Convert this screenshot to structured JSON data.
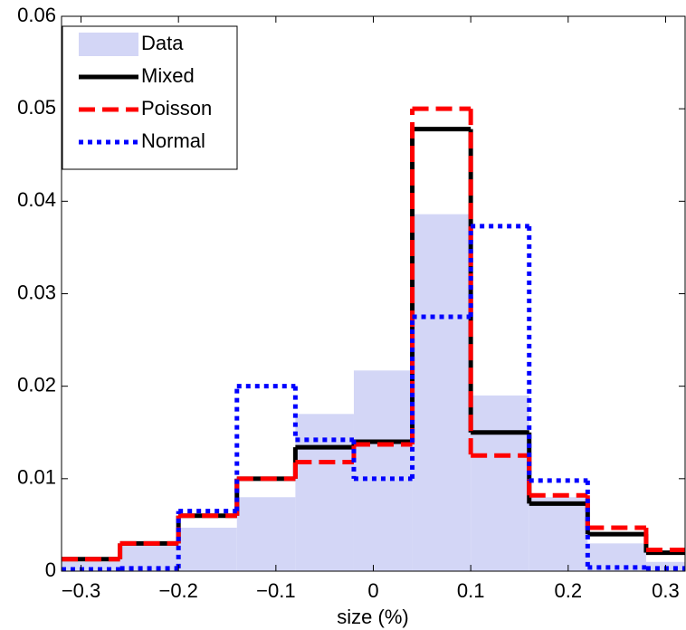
{
  "chart_data": {
    "type": "histogram",
    "x_label": "size (%)",
    "bins": [
      -0.32,
      -0.26,
      -0.2,
      -0.14,
      -0.08,
      -0.02,
      0.04,
      0.1,
      0.16,
      0.22,
      0.28,
      0.34
    ],
    "series": [
      {
        "name": "Data",
        "color": "#d3d6f6",
        "style": "bar",
        "values": [
          0.001,
          0.003,
          0.0047,
          0.008,
          0.017,
          0.0217,
          0.0386,
          0.019,
          0.008,
          0.003,
          0.001
        ]
      },
      {
        "name": "Mixed",
        "color": "#000000",
        "style": "solid",
        "values": [
          0.0013,
          0.003,
          0.006,
          0.01,
          0.0134,
          0.014,
          0.0478,
          0.015,
          0.0073,
          0.004,
          0.002
        ]
      },
      {
        "name": "Poisson",
        "color": "#ff0000",
        "style": "dashed",
        "values": [
          0.0013,
          0.003,
          0.006,
          0.01,
          0.0118,
          0.0137,
          0.05,
          0.0125,
          0.0082,
          0.0047,
          0.0023
        ]
      },
      {
        "name": "Normal",
        "color": "#0000ff",
        "style": "dotted",
        "values": [
          0.0002,
          0.0003,
          0.0065,
          0.02,
          0.0142,
          0.01,
          0.0275,
          0.0373,
          0.0098,
          0.0004,
          0.0003
        ]
      }
    ],
    "xlim": [
      -0.32,
      0.32
    ],
    "xticks": [
      {
        "value": -0.3,
        "label": "−0.3"
      },
      {
        "value": -0.2,
        "label": "−0.2"
      },
      {
        "value": -0.1,
        "label": "−0.1"
      },
      0,
      0.1,
      0.2,
      0.3
    ],
    "ylim": [
      0,
      0.06
    ],
    "yticks": [
      0,
      0.01,
      0.02,
      0.03,
      0.04,
      0.05,
      0.06
    ],
    "legend": "top-left"
  }
}
